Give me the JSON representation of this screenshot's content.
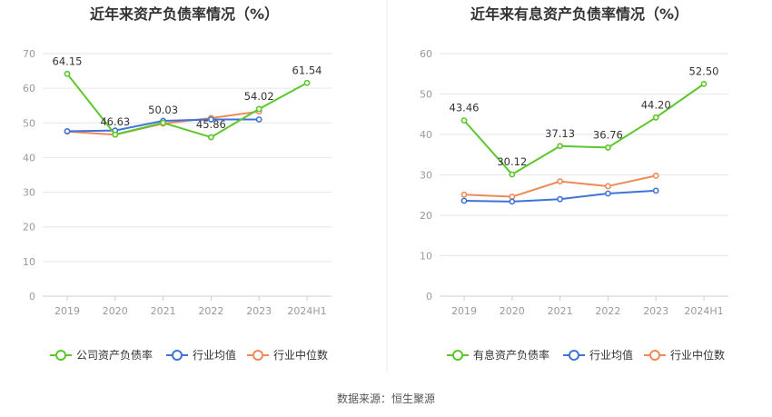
{
  "chart_data": [
    {
      "type": "line",
      "title": "近年来资产负债率情况（%）",
      "categories": [
        "2019",
        "2020",
        "2021",
        "2022",
        "2023",
        "2024H1"
      ],
      "ylim": [
        0,
        70
      ],
      "yticks": [
        0,
        10,
        20,
        30,
        40,
        50,
        60,
        70
      ],
      "grid": true,
      "legend_position": "bottom",
      "series": [
        {
          "name": "公司资产负债率",
          "color": "#5cc62a",
          "values": [
            64.15,
            46.63,
            50.03,
            45.86,
            54.02,
            61.54
          ],
          "labels": [
            "64.15",
            "46.63",
            "50.03",
            "45.86",
            "54.02",
            "61.54"
          ]
        },
        {
          "name": "行业均值",
          "color": "#3f74d6",
          "values": [
            47.6,
            47.8,
            50.6,
            51.0,
            51.0,
            null
          ]
        },
        {
          "name": "行业中位数",
          "color": "#ed8a5a",
          "values": [
            47.5,
            46.6,
            49.8,
            51.4,
            53.3,
            null
          ]
        }
      ]
    },
    {
      "type": "line",
      "title": "近年来有息资产负债率情况（%）",
      "categories": [
        "2019",
        "2020",
        "2021",
        "2022",
        "2023",
        "2024H1"
      ],
      "ylim": [
        0,
        60
      ],
      "yticks": [
        0,
        10,
        20,
        30,
        40,
        50,
        60
      ],
      "grid": true,
      "legend_position": "bottom",
      "series": [
        {
          "name": "有息资产负债率",
          "color": "#5cc62a",
          "values": [
            43.46,
            30.12,
            37.13,
            36.76,
            44.2,
            52.5
          ],
          "labels": [
            "43.46",
            "30.12",
            "37.13",
            "36.76",
            "44.20",
            "52.50"
          ]
        },
        {
          "name": "行业均值",
          "color": "#3f74d6",
          "values": [
            23.6,
            23.4,
            24.0,
            25.4,
            26.1,
            null
          ]
        },
        {
          "name": "行业中位数",
          "color": "#ed8a5a",
          "values": [
            25.1,
            24.6,
            28.4,
            27.2,
            29.8,
            null
          ]
        }
      ]
    }
  ],
  "source": "数据来源：恒生聚源"
}
